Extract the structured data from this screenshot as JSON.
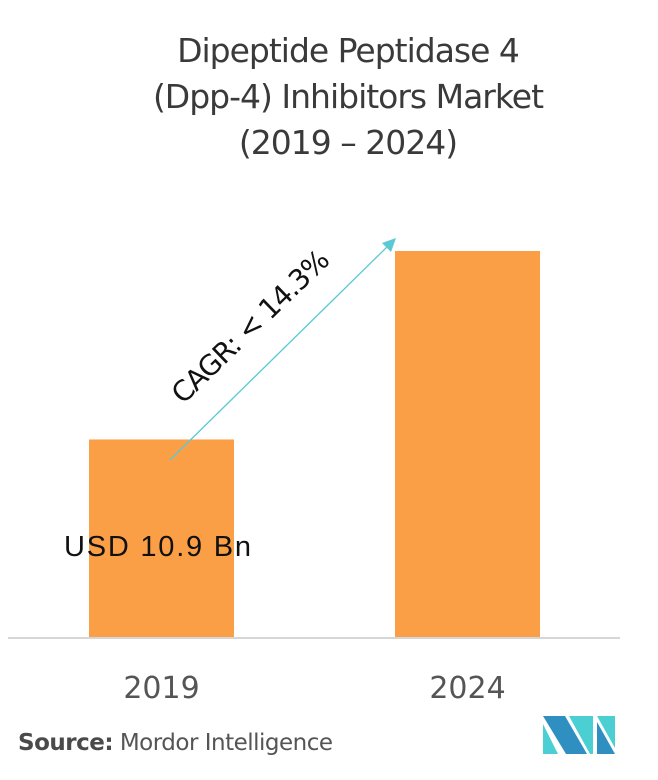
{
  "chart_data": {
    "type": "bar",
    "title_lines": [
      "Dipeptide Peptidase 4",
      "(Dpp-4) Inhibitors Market",
      "(2019 – 2024)"
    ],
    "categories": [
      "2019",
      "2024"
    ],
    "values": [
      10.9,
      21.3
    ],
    "value_labels": [
      "USD 10.9 Bn",
      ""
    ],
    "annotation": "CAGR: < 14.3%",
    "bar_color": "#fb9f47",
    "arrow_color": "#5bc8d4",
    "xlabel": "",
    "ylabel": "",
    "grid": false
  },
  "footer": {
    "source_label": "Source:",
    "source_name": "Mordor Intelligence",
    "logo_text": "MI",
    "logo_colors": [
      "#2e8fc0",
      "#4ccfd3"
    ]
  }
}
